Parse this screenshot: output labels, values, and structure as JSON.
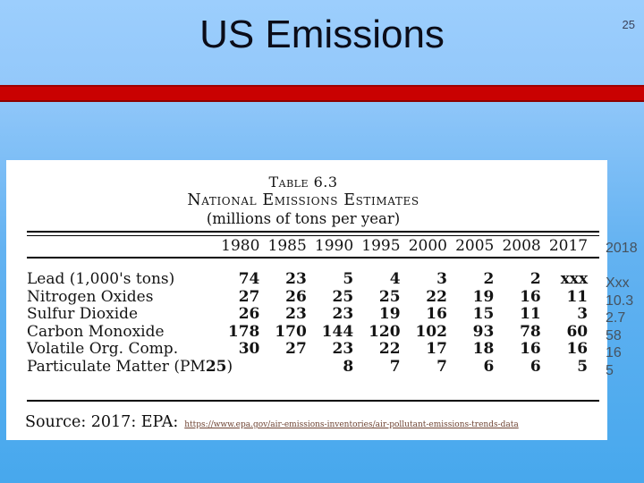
{
  "slide": {
    "title": "US Emissions",
    "page_number": "25"
  },
  "table": {
    "caption_line1": "Table 6.3",
    "caption_line2": "National Emissions Estimates",
    "caption_line3": "(millions of tons per year)",
    "years": [
      "1980",
      "1985",
      "1990",
      "1995",
      "2000",
      "2005",
      "2008",
      "2017"
    ],
    "rows": [
      {
        "label": "Lead (1,000's tons)",
        "values": [
          "74",
          "23",
          "5",
          "4",
          "3",
          "2",
          "2",
          "xxx"
        ]
      },
      {
        "label": "Nitrogen Oxides",
        "values": [
          "27",
          "26",
          "25",
          "25",
          "22",
          "19",
          "16",
          "11"
        ]
      },
      {
        "label": "Sulfur Dioxide",
        "values": [
          "26",
          "23",
          "23",
          "19",
          "16",
          "15",
          "11",
          "3"
        ]
      },
      {
        "label": "Carbon Monoxide",
        "values": [
          "178",
          "170",
          "144",
          "120",
          "102",
          "93",
          "78",
          "60"
        ]
      },
      {
        "label": "Volatile Org. Comp.",
        "values": [
          "30",
          "27",
          "23",
          "22",
          "17",
          "18",
          "16",
          "16"
        ]
      },
      {
        "label": "Particulate Matter (PM",
        "label_bold": "25",
        "label_suffix": ")",
        "values": [
          "",
          "",
          "8",
          "7",
          "7",
          "6",
          "6",
          "5"
        ]
      }
    ],
    "source_label": "Source: 2017: EPA:",
    "source_url": "https://www.epa.gov/air-emissions-inventories/air-pollutant-emissions-trends-data"
  },
  "annotation_2018": {
    "header": "2018",
    "values": [
      "Xxx",
      "10.3",
      "2.7",
      "58",
      "16",
      "5"
    ]
  },
  "colors": {
    "background_top": "#9ccefd",
    "background_bottom": "#47a8ed",
    "divider_red": "#c90101",
    "title_text": "#0b0c18",
    "annotation_text": "#46525e",
    "source_url_text": "#6f4433"
  }
}
